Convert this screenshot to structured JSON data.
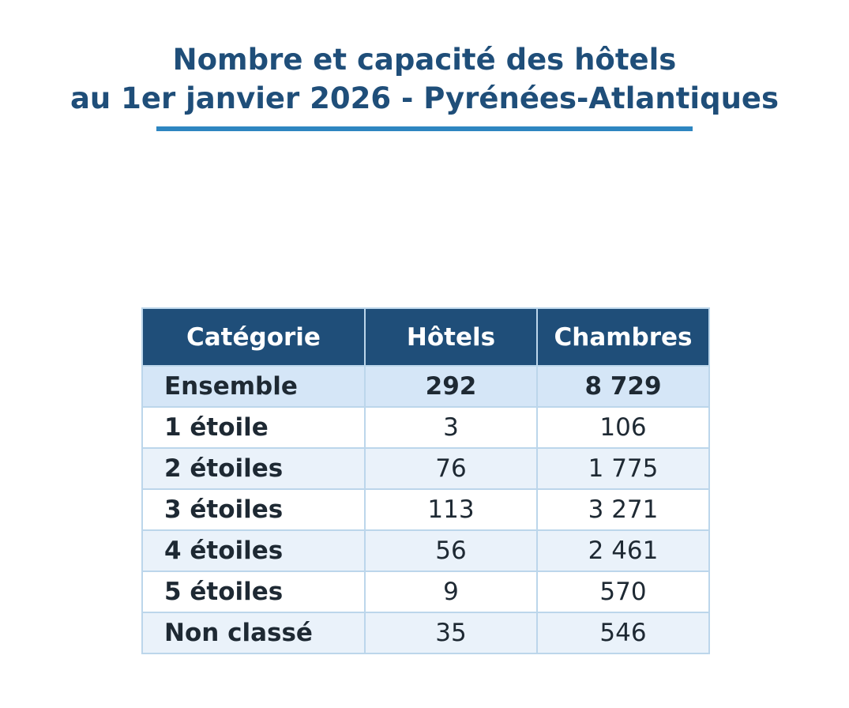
{
  "title": {
    "line1": "Nombre et capacité des hôtels",
    "line2": "au 1er janvier 2026 - Pyrénées-Atlantiques"
  },
  "colors": {
    "title": "#1f4e79",
    "underline": "#2e86c1",
    "header_bg": "#1f4e79",
    "header_text": "#ffffff",
    "total_row_bg": "#d5e6f7",
    "row_even_bg": "#ffffff",
    "row_odd_bg": "#eaf2fa",
    "border": "#bcd6eb"
  },
  "chart_data": {
    "type": "table",
    "columns": [
      "Catégorie",
      "Hôtels",
      "Chambres"
    ],
    "rows": [
      {
        "category": "Ensemble",
        "hotels": "292",
        "chambres": "8 729",
        "is_total": true
      },
      {
        "category": "1 étoile",
        "hotels": "3",
        "chambres": "106",
        "is_total": false
      },
      {
        "category": "2 étoiles",
        "hotels": "76",
        "chambres": "1 775",
        "is_total": false
      },
      {
        "category": "3 étoiles",
        "hotels": "113",
        "chambres": "3 271",
        "is_total": false
      },
      {
        "category": "4 étoiles",
        "hotels": "56",
        "chambres": "2 461",
        "is_total": false
      },
      {
        "category": "5 étoiles",
        "hotels": "9",
        "chambres": "570",
        "is_total": false
      },
      {
        "category": "Non classé",
        "hotels": "35",
        "chambres": "546",
        "is_total": false
      }
    ]
  }
}
